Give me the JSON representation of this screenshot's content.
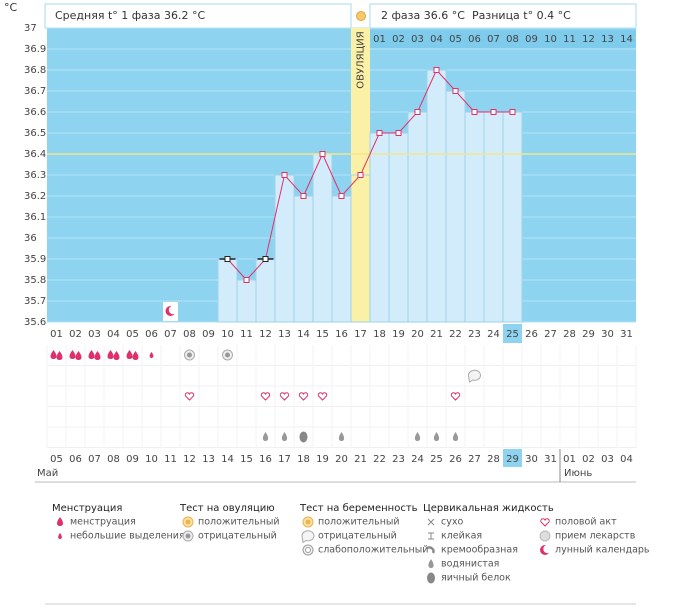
{
  "header": {
    "unit": "°C",
    "phase1": "Средняя t° 1 фаза 36.2 °C",
    "phase2": "2 фаза 36.6 °C",
    "difference": "Разница t° 0.4 °C"
  },
  "chart_data": {
    "type": "line",
    "ovulation_label": "ОВУЛЯЦИЯ",
    "ovulation_day": "17",
    "categories": [
      "01",
      "02",
      "03",
      "04",
      "05",
      "06",
      "07",
      "08",
      "09",
      "10",
      "11",
      "12",
      "13",
      "14",
      "15",
      "16",
      "17",
      "18",
      "19",
      "20",
      "21",
      "22",
      "23",
      "24",
      "25",
      "26",
      "27",
      "28",
      "29",
      "30",
      "31"
    ],
    "phase2_days": [
      "01",
      "02",
      "03",
      "04",
      "05",
      "06",
      "07",
      "08",
      "09",
      "10",
      "11",
      "12",
      "13",
      "14"
    ],
    "series": [
      {
        "color": "#e0306a",
        "values": [
          null,
          null,
          null,
          null,
          null,
          null,
          null,
          null,
          null,
          35.9,
          35.8,
          35.9,
          36.3,
          36.2,
          36.4,
          36.2,
          36.3,
          36.5,
          36.5,
          36.6,
          36.8,
          36.7,
          36.6,
          36.6,
          36.6,
          null,
          null,
          null,
          null,
          null,
          null
        ],
        "marker_colors": [
          null,
          null,
          null,
          null,
          null,
          null,
          null,
          null,
          null,
          "#222222",
          "#e0306a",
          "#222222",
          "#e0306a",
          "#e0306a",
          "#e0306a",
          "#e0306a",
          "#e0306a",
          "#e0306a",
          "#e0306a",
          "#e0306a",
          "#e0306a",
          "#e0306a",
          "#e0306a",
          "#e0306a",
          "#e0306a",
          null,
          null,
          null,
          null,
          null,
          null
        ]
      }
    ],
    "bar_color": "#d2ecfb",
    "background": "#8ed4f1",
    "ovulation_color": "#fbf1a6",
    "ylim": [
      35.6,
      37
    ],
    "yticks": [
      35.6,
      35.7,
      35.8,
      35.9,
      36,
      36.1,
      36.2,
      36.3,
      36.4,
      36.5,
      36.6,
      36.7,
      36.8,
      36.9,
      37
    ],
    "coverline": 36.4,
    "coverline_color": "#f1e68a",
    "highlight": "25",
    "highlight_color": "#8ed4f1"
  },
  "calendar": {
    "dates": [
      "05",
      "06",
      "07",
      "08",
      "09",
      "10",
      "11",
      "12",
      "13",
      "14",
      "15",
      "16",
      "17",
      "18",
      "19",
      "20",
      "21",
      "22",
      "23",
      "24",
      "25",
      "26",
      "27",
      "28",
      "29",
      "30",
      "31",
      "01",
      "02",
      "03",
      "04"
    ],
    "date_colors": [
      "#e0306a",
      "#444",
      "#444",
      "#444",
      "#444",
      "#444",
      "#e0306a",
      "#e0306a",
      "#444",
      "#444",
      "#444",
      "#444",
      "#444",
      "#e0306a",
      "#e0306a",
      "#444",
      "#444",
      "#444",
      "#444",
      "#444",
      "#e0306a",
      "#e0306a",
      "#444",
      "#444",
      "#444",
      "#444",
      "#444",
      "#e0306a",
      "#e0306a",
      "#444",
      "#444"
    ],
    "months": [
      "Май",
      "Июнь"
    ]
  },
  "legend": [
    {
      "title": "Менструация",
      "items": [
        "менструация",
        "небольшие выделения"
      ]
    },
    {
      "title": "Тест на овуляцию",
      "items": [
        "положительный",
        "отрицательный"
      ]
    },
    {
      "title": "Тест на беременность",
      "items": [
        "положительный",
        "отрицательный",
        "слабоположительный"
      ]
    },
    {
      "title": "Цервикальная жидкость",
      "items": [
        "сухо",
        "клейкая",
        "кремообразная",
        "водянистая",
        "яичный белок"
      ]
    },
    {
      "items": [
        "половой акт",
        "прием лекарств",
        "лунный календарь"
      ]
    }
  ]
}
